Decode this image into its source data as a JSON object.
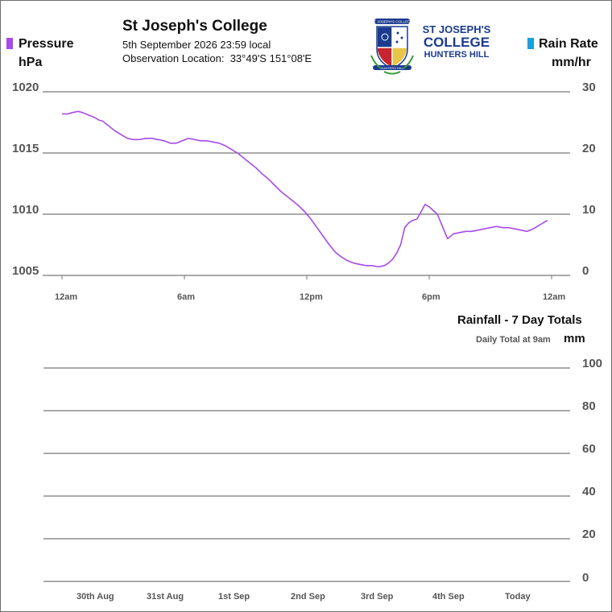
{
  "header": {
    "title": "St Joseph's College",
    "datetime": "5th September 2026  23:59 local",
    "location_label": "Observation Location:",
    "location_value": "33°49'S 151°08'E"
  },
  "logo": {
    "line1": "ST JOSEPH'S",
    "line2": "COLLEGE",
    "line3": "HUNTERS HILL",
    "banner_top": "ST JOSEPH'S COLLEGE",
    "banner_bottom": "HUNTERS HILL",
    "brand_color": "#1b3b8f",
    "crest_red": "#c8262e",
    "crest_gold": "#e7c64a",
    "crest_green": "#3a9a3a"
  },
  "chart_data": [
    {
      "type": "line",
      "title": "",
      "left_axis": {
        "title": "Pressure",
        "unit": "hPa",
        "ticks": [
          "1020",
          "1015",
          "1010",
          "1005"
        ],
        "ylim": [
          1005,
          1020
        ],
        "color": "#a64ce6"
      },
      "right_axis": {
        "title": "Rain Rate",
        "unit": "mm/hr",
        "ticks": [
          "30",
          "20",
          "10",
          "0"
        ],
        "ylim": [
          0,
          30
        ],
        "color": "#1a9fe0"
      },
      "x_ticks": [
        "12am",
        "6am",
        "12pm",
        "6pm",
        "12am"
      ],
      "xlim_hours": [
        0,
        24
      ],
      "grid": true,
      "series": [
        {
          "name": "Pressure",
          "color": "#a64ce6",
          "x": [
            0.0,
            0.3,
            0.5,
            0.8,
            1.0,
            1.3,
            1.6,
            1.8,
            2.0,
            2.3,
            2.6,
            2.9,
            3.2,
            3.5,
            3.8,
            4.1,
            4.4,
            4.7,
            5.0,
            5.3,
            5.6,
            5.9,
            6.2,
            6.5,
            6.8,
            7.1,
            7.4,
            7.7,
            8.0,
            8.3,
            8.6,
            8.9,
            9.2,
            9.5,
            9.8,
            10.1,
            10.4,
            10.7,
            11.0,
            11.3,
            11.6,
            11.9,
            12.2,
            12.5,
            12.8,
            13.1,
            13.4,
            13.7,
            14.0,
            14.3,
            14.6,
            14.9,
            15.2,
            15.5,
            15.8,
            16.0,
            16.2,
            16.4,
            16.6,
            16.8,
            17.0,
            17.2,
            17.4,
            17.6,
            17.8,
            18.0,
            18.2,
            18.4,
            18.6,
            18.9,
            19.2,
            19.5,
            19.8,
            20.1,
            20.4,
            20.7,
            21.0,
            21.3,
            21.6,
            21.9,
            22.2,
            22.5,
            22.8,
            23.1,
            23.4,
            23.8
          ],
          "values": [
            1018.2,
            1018.2,
            1018.3,
            1018.4,
            1018.3,
            1018.1,
            1017.9,
            1017.7,
            1017.6,
            1017.2,
            1016.8,
            1016.5,
            1016.2,
            1016.1,
            1016.1,
            1016.2,
            1016.2,
            1016.1,
            1016.0,
            1015.8,
            1015.8,
            1016.0,
            1016.2,
            1016.1,
            1016.0,
            1016.0,
            1015.9,
            1015.8,
            1015.6,
            1015.3,
            1015.0,
            1014.6,
            1014.2,
            1013.8,
            1013.3,
            1012.9,
            1012.4,
            1011.9,
            1011.5,
            1011.1,
            1010.7,
            1010.2,
            1009.6,
            1008.9,
            1008.2,
            1007.5,
            1006.9,
            1006.5,
            1006.2,
            1006.0,
            1005.9,
            1005.8,
            1005.8,
            1005.7,
            1005.8,
            1006.0,
            1006.3,
            1006.8,
            1007.5,
            1008.9,
            1009.3,
            1009.5,
            1009.6,
            1010.2,
            1010.8,
            1010.6,
            1010.3,
            1010.0,
            1009.2,
            1008.0,
            1008.4,
            1008.5,
            1008.6,
            1008.6,
            1008.7,
            1008.8,
            1008.9,
            1009.0,
            1008.9,
            1008.9,
            1008.8,
            1008.7,
            1008.6,
            1008.8,
            1009.1,
            1009.5
          ]
        },
        {
          "name": "Rain Rate",
          "color": "#1a9fe0",
          "x": [],
          "values": []
        }
      ]
    },
    {
      "type": "bar",
      "title": "Rainfall - 7 Day Totals",
      "subtitle": "Daily Total at 9am",
      "ylabel": "mm",
      "categories": [
        "30th Aug",
        "31st Aug",
        "1st Sep",
        "2nd Sep",
        "3rd Sep",
        "4th Sep",
        "Today"
      ],
      "values": [
        0,
        0,
        0,
        0,
        0,
        0,
        0
      ],
      "ylim": [
        0,
        100
      ],
      "yticks": [
        "100",
        "80",
        "60",
        "40",
        "20",
        "0"
      ],
      "grid": true
    }
  ]
}
